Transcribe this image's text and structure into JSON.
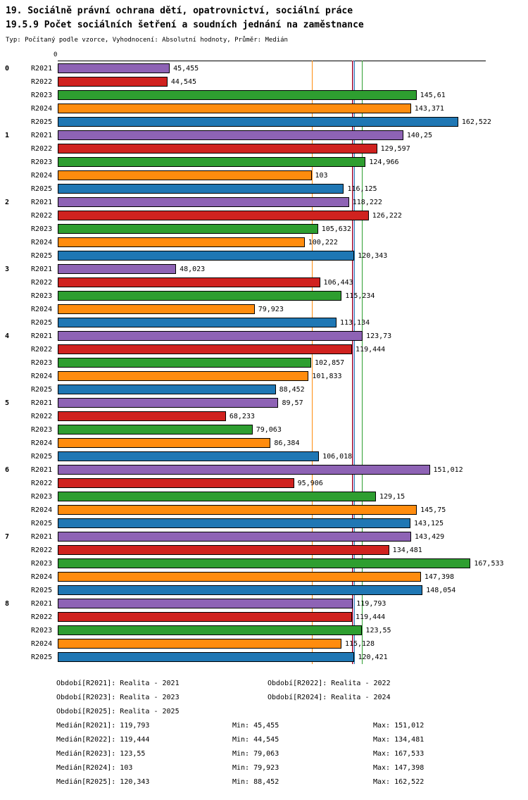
{
  "header": {
    "title_line1": "19. Sociálně právní ochrana dětí, opatrovnictví, sociální práce",
    "title_line2": "19.5.9 Počet sociálních šetření a soudních jednání na zaměstnance",
    "subtitle": "Typ: Počítaný podle vzorce, Vyhodnocení: Absolutní hodnoty, Průměr: Medián"
  },
  "chart_data": {
    "type": "bar",
    "orientation": "horizontal",
    "axis_origin_label": "0",
    "xlim": [
      0,
      173.7
    ],
    "legend_position": "bottom",
    "series": [
      {
        "name": "R2021",
        "color": "#8e63b5",
        "median": 119.793,
        "median_display": "119,793"
      },
      {
        "name": "R2022",
        "color": "#d0221f",
        "median": 119.444,
        "median_display": "119,444"
      },
      {
        "name": "R2023",
        "color": "#2e9e30",
        "median": 123.55,
        "median_display": "123,55"
      },
      {
        "name": "R2024",
        "color": "#ff8c0e",
        "median": 103,
        "median_display": "103"
      },
      {
        "name": "R2025",
        "color": "#1f77b4",
        "median": 120.343,
        "median_display": "120,343"
      }
    ],
    "groups": [
      {
        "label": "0",
        "values": [
          45.455,
          44.545,
          145.61,
          143.371,
          162.522
        ],
        "display": [
          "45,455",
          "44,545",
          "145,61",
          "143,371",
          "162,522"
        ]
      },
      {
        "label": "1",
        "values": [
          140.25,
          129.597,
          124.966,
          103,
          116.125
        ],
        "display": [
          "140,25",
          "129,597",
          "124,966",
          "103",
          "116,125"
        ]
      },
      {
        "label": "2",
        "values": [
          118.222,
          126.222,
          105.632,
          100.222,
          120.343
        ],
        "display": [
          "118,222",
          "126,222",
          "105,632",
          "100,222",
          "120,343"
        ]
      },
      {
        "label": "3",
        "values": [
          48.023,
          106.443,
          115.234,
          79.923,
          113.134
        ],
        "display": [
          "48,023",
          "106,443",
          "115,234",
          "79,923",
          "113,134"
        ]
      },
      {
        "label": "4",
        "values": [
          123.73,
          119.444,
          102.857,
          101.833,
          88.452
        ],
        "display": [
          "123,73",
          "119,444",
          "102,857",
          "101,833",
          "88,452"
        ]
      },
      {
        "label": "5",
        "values": [
          89.57,
          68.233,
          79.063,
          86.384,
          106.018
        ],
        "display": [
          "89,57",
          "68,233",
          "79,063",
          "86,384",
          "106,018"
        ]
      },
      {
        "label": "6",
        "values": [
          151.012,
          95.906,
          129.15,
          145.75,
          143.125
        ],
        "display": [
          "151,012",
          "95,906",
          "129,15",
          "145,75",
          "143,125"
        ]
      },
      {
        "label": "7",
        "values": [
          143.429,
          134.481,
          167.533,
          147.398,
          148.054
        ],
        "display": [
          "143,429",
          "134,481",
          "167,533",
          "147,398",
          "148,054"
        ]
      },
      {
        "label": "8",
        "values": [
          119.793,
          119.444,
          123.55,
          115.128,
          120.421
        ],
        "display": [
          "119,793",
          "119,444",
          "123,55",
          "115,128",
          "120,421"
        ]
      }
    ]
  },
  "legend": {
    "items": [
      "Období[R2021]: Realita - 2021",
      "Období[R2022]: Realita - 2022",
      "Období[R2023]: Realita - 2023",
      "Období[R2024]: Realita - 2024",
      "Období[R2025]: Realita - 2025"
    ]
  },
  "stats": {
    "rows": [
      [
        "Medián[R2021]: 119,793",
        "Min: 45,455",
        "Max: 151,012"
      ],
      [
        "Medián[R2022]: 119,444",
        "Min: 44,545",
        "Max: 134,481"
      ],
      [
        "Medián[R2023]: 123,55",
        "Min: 79,063",
        "Max: 167,533"
      ],
      [
        "Medián[R2024]: 103",
        "Min: 79,923",
        "Max: 147,398"
      ],
      [
        "Medián[R2025]: 120,343",
        "Min: 88,452",
        "Max: 162,522"
      ]
    ]
  }
}
